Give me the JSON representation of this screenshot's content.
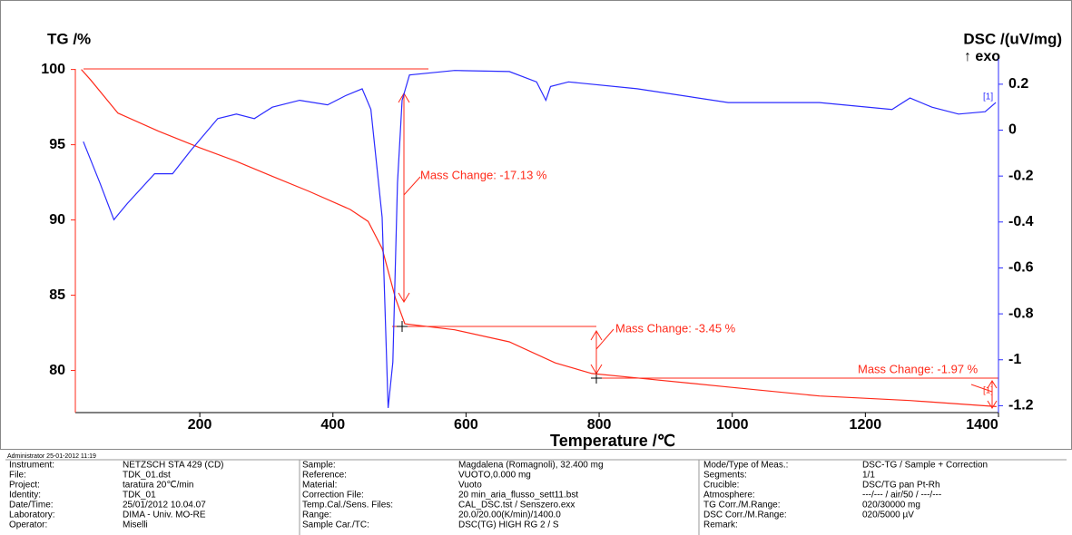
{
  "chart_data": {
    "type": "line",
    "ylabel": "TG /%",
    "y2label": "DSC /(uV/mg)",
    "y2note": "↑ exo",
    "xlabel": "Temperature /℃",
    "xlim": [
      13,
      1400
    ],
    "xticks": [
      200,
      400,
      600,
      800,
      1000,
      1200,
      1400
    ],
    "ylim": [
      77.2,
      100.7
    ],
    "yticks": [
      80,
      85,
      90,
      95,
      100
    ],
    "y2lim": [
      -1.23,
      0.31
    ],
    "y2ticks": [
      0.2,
      0,
      -0.2,
      -0.4,
      -0.6,
      -0.8,
      -1.0,
      -1.2
    ],
    "series": [
      {
        "color": "#ff2a1a",
        "x": [
          22,
          36,
          77,
          138,
          200,
          255,
          309,
          364,
          426,
          453,
          474,
          494,
          508,
          583,
          665,
          734,
          789,
          857,
          994,
          1131,
          1267,
          1397
        ],
        "values": [
          100,
          99.3,
          97.1,
          95.9,
          94.8,
          93.9,
          92.9,
          91.9,
          90.7,
          89.9,
          88.1,
          84.8,
          83.1,
          82.7,
          81.9,
          80.5,
          79.8,
          79.5,
          78.9,
          78.3,
          78.0,
          77.6
        ]
      },
      {
        "color": "#2b2bff",
        "axis": "y2",
        "x": [
          25,
          50,
          71,
          91,
          132,
          159,
          186,
          227,
          255,
          282,
          309,
          350,
          392,
          419,
          444,
          457,
          474,
          483,
          490,
          497,
          504,
          515,
          583,
          665,
          706,
          720,
          727,
          754,
          857,
          994,
          1131,
          1240,
          1267,
          1300,
          1340,
          1380,
          1396
        ],
        "values": [
          -0.05,
          -0.23,
          -0.39,
          -0.32,
          -0.19,
          -0.19,
          -0.09,
          0.05,
          0.07,
          0.05,
          0.1,
          0.13,
          0.11,
          0.15,
          0.18,
          0.09,
          -0.38,
          -1.21,
          -1.01,
          -0.23,
          0.13,
          0.24,
          0.26,
          0.255,
          0.21,
          0.13,
          0.19,
          0.21,
          0.18,
          0.12,
          0.12,
          0.09,
          0.14,
          0.1,
          0.07,
          0.08,
          0.12
        ]
      }
    ],
    "annotations": [
      "Mass Change: -17.13 %",
      "Mass Change: -3.45 %",
      "Mass Change: -1.97 %",
      "[1]"
    ]
  },
  "footer": "Administrator  25-01-2012 11:19",
  "info": [
    [
      [
        "Instrument:",
        "NETZSCH STA 429 (CD)"
      ],
      [
        "File:",
        "TDK_01.dst"
      ],
      [
        "Project:",
        "taratura 20℃/min"
      ],
      [
        "Identity:",
        "TDK_01"
      ],
      [
        "Date/Time:",
        "25/01/2012 10.04.07"
      ],
      [
        "Laboratory:",
        "DIMA - Univ. MO-RE"
      ],
      [
        "Operator:",
        "Miselli"
      ]
    ],
    [
      [
        "Sample:",
        "Magdalena (Romagnoli), 32.400 mg"
      ],
      [
        "Reference:",
        "VUOTO,0.000 mg"
      ],
      [
        "Material:",
        "Vuoto"
      ],
      [
        "Correction File:",
        "20 min_aria_flusso_sett11.bst"
      ],
      [
        "Temp.Cal./Sens. Files:",
        "CAL_DSC.tst / Senszero.exx"
      ],
      [
        "Range:",
        "20.0/20.00(K/min)/1400.0"
      ],
      [
        "Sample Car./TC:",
        "DSC(TG) HIGH RG 2 / S"
      ]
    ],
    [
      [
        "Mode/Type of Meas.:",
        "DSC-TG / Sample + Correction"
      ],
      [
        "Segments:",
        "1/1"
      ],
      [
        "Crucible:",
        "DSC/TG pan Pt-Rh"
      ],
      [
        "Atmosphere:",
        "---/--- / air/50 / ---/---"
      ],
      [
        "TG Corr./M.Range:",
        "020/30000 mg"
      ],
      [
        "DSC Corr./M.Range:",
        "020/5000 µV"
      ],
      [
        "Remark:"
      ]
    ]
  ]
}
